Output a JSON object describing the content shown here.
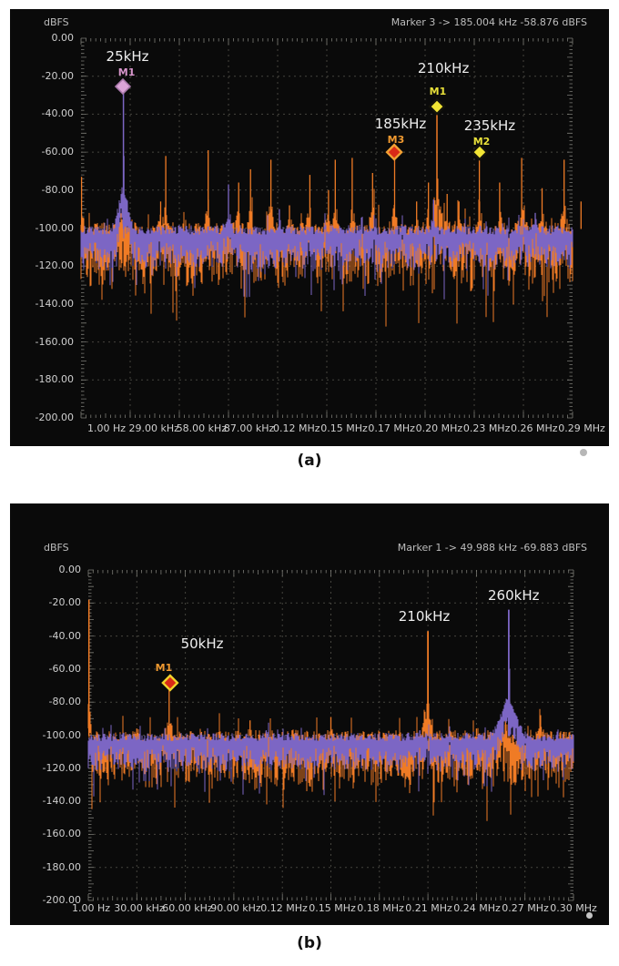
{
  "colors": {
    "page_bg": "#ffffff",
    "panel_bg": "#0a0a0a",
    "grid": "#45443e",
    "tick": "#8f8f88",
    "axis_text": "#cfcfcf",
    "header_text": "#bdbdbd",
    "annotation_text": "#eeeeee",
    "caption_text": "#111111",
    "orange_trace": "#ef7b25",
    "purple_trace": "#7c66c4",
    "yellow_marker": "#f2e535",
    "red_marker": "#da2a17",
    "pink_marker": "#dca4d8"
  },
  "chart_data": [
    {
      "type": "line",
      "subtype": "fft-spectrum",
      "caption": "(a)",
      "ylabel": "dBFS",
      "marker_readout": "Marker 3 -> 185.004 kHz -58.876 dBFS",
      "y_axis": {
        "max_db": 0,
        "min_db": -200,
        "ticks": [
          "0.00",
          "-20.00",
          "-40.00",
          "-60.00",
          "-80.00",
          "-100.00",
          "-120.00",
          "-140.00",
          "-160.00",
          "-180.00",
          "-200.00"
        ]
      },
      "x_axis": {
        "span_khz": 290,
        "ticks": [
          "1.00 Hz",
          "29.00 kHz",
          "58.00 kHz",
          "87.00 kHz",
          "0.12 MHz",
          "0.15 MHz",
          "0.17 MHz",
          "0.20 MHz",
          "0.23 MHz",
          "0.26 MHz",
          "0.29 MHz"
        ]
      },
      "noise_floor_db": {
        "top": -100,
        "bottom": -130
      },
      "series": [
        {
          "name": "trace-orange",
          "color": "#ef7b25",
          "peaks": [
            {
              "f_khz": 0.3,
              "db": -73
            },
            {
              "f_khz": 25,
              "db": -80,
              "skirt": 6
            },
            {
              "f_khz": 47,
              "db": -86
            },
            {
              "f_khz": 50,
              "db": -62
            },
            {
              "f_khz": 75,
              "db": -59
            },
            {
              "f_khz": 93,
              "db": -76
            },
            {
              "f_khz": 100,
              "db": -69
            },
            {
              "f_khz": 112,
              "db": -64
            },
            {
              "f_khz": 123,
              "db": -88
            },
            {
              "f_khz": 135,
              "db": -72
            },
            {
              "f_khz": 146,
              "db": -80
            },
            {
              "f_khz": 150,
              "db": -64
            },
            {
              "f_khz": 160,
              "db": -63
            },
            {
              "f_khz": 172,
              "db": -71
            },
            {
              "f_khz": 185,
              "db": -59.5
            },
            {
              "f_khz": 198,
              "db": -86
            },
            {
              "f_khz": 205,
              "db": -76
            },
            {
              "f_khz": 210,
              "db": -37,
              "skirt": 4,
              "w": 1.5
            },
            {
              "f_khz": 216,
              "db": -82
            },
            {
              "f_khz": 223,
              "db": -86
            },
            {
              "f_khz": 235,
              "db": -58.5
            },
            {
              "f_khz": 247,
              "db": -76
            },
            {
              "f_khz": 260,
              "db": -63
            },
            {
              "f_khz": 272,
              "db": -79
            },
            {
              "f_khz": 285,
              "db": -64
            },
            {
              "f_khz": 295,
              "db": -86
            }
          ]
        },
        {
          "name": "trace-purple",
          "color": "#7c66c4",
          "peaks": [
            {
              "f_khz": 25,
              "db": -28,
              "skirt": 5,
              "w": 1.5
            },
            {
              "f_khz": 25.3,
              "db": -62,
              "skirt": 1.3
            },
            {
              "f_khz": 87,
              "db": -77
            },
            {
              "f_khz": 117,
              "db": -90
            },
            {
              "f_khz": 208,
              "db": -85
            },
            {
              "f_khz": 268,
              "db": -92
            }
          ]
        }
      ],
      "markers": [
        {
          "id": "M1",
          "freq_text": "25kHz",
          "f_khz": 24.7,
          "db": -25.4,
          "fill": "#dca4d8",
          "stroke": "#a878aa",
          "sw": 1.6,
          "label_color": "#d795cb",
          "label_f": 26.9,
          "label_db": -17.7,
          "text_f": 27.4,
          "text_db": -9.6
        },
        {
          "id": "M1",
          "freq_text": "210kHz",
          "f_khz": 210,
          "db": -36,
          "fill": "#f2e535",
          "stroke": "#14130a",
          "sw": 2.4,
          "label_color": "#e8e03a",
          "label_f": 210.5,
          "label_db": -27.8,
          "text_f": 213.8,
          "text_db": -15.8
        },
        {
          "id": "M3",
          "freq_text": "185kHz",
          "f_khz": 184.8,
          "db": -60,
          "fill": "#da2a17",
          "stroke": "#f2a033",
          "sw": 2.4,
          "label_color": "#f09930",
          "label_f": 185.8,
          "label_db": -53.2,
          "text_f": 188.5,
          "text_db": -45.1
        },
        {
          "id": "M2",
          "freq_text": "235kHz",
          "f_khz": 235.2,
          "db": -60,
          "fill": "#f2e535",
          "stroke": "#14130a",
          "sw": 2.4,
          "label_color": "#e8e03a",
          "label_f": 236.3,
          "label_db": -54.2,
          "text_f": 241.1,
          "text_db": -46
        }
      ],
      "annotations": []
    },
    {
      "type": "line",
      "subtype": "fft-spectrum",
      "caption": "(b)",
      "ylabel": "dBFS",
      "marker_readout": "Marker 1 -> 49.988 kHz -69.883 dBFS",
      "y_axis": {
        "max_db": 0,
        "min_db": -200,
        "ticks": [
          "0.00",
          "-20.00",
          "-40.00",
          "-60.00",
          "-80.00",
          "-100.00",
          "-120.00",
          "-140.00",
          "-160.00",
          "-180.00",
          "-200.00"
        ]
      },
      "x_axis": {
        "span_khz": 300,
        "ticks": [
          "1.00 Hz",
          "30.00 kHz",
          "60.00 kHz",
          "90.00 kHz",
          "0.12 MHz",
          "0.15 MHz",
          "0.18 MHz",
          "0.21 MHz",
          "0.24 MHz",
          "0.27 MHz",
          "0.30 MHz"
        ]
      },
      "noise_floor_db": {
        "top": -100,
        "bottom": -130
      },
      "series": [
        {
          "name": "trace-orange",
          "color": "#ef7b25",
          "peaks": [
            {
              "f_khz": 0.4,
              "db": -18,
              "skirt": 1.5,
              "w": 1.5
            },
            {
              "f_khz": 30,
              "db": -96
            },
            {
              "f_khz": 50,
              "db": -70
            },
            {
              "f_khz": 70,
              "db": -98
            },
            {
              "f_khz": 100,
              "db": -91
            },
            {
              "f_khz": 126,
              "db": -97
            },
            {
              "f_khz": 150,
              "db": -89
            },
            {
              "f_khz": 175,
              "db": -99
            },
            {
              "f_khz": 210,
              "db": -37,
              "skirt": 3.5,
              "w": 1.8
            },
            {
              "f_khz": 240,
              "db": -96
            },
            {
              "f_khz": 258,
              "db": -88,
              "skirt": 4
            },
            {
              "f_khz": 280,
              "db": -95
            }
          ]
        },
        {
          "name": "trace-purple",
          "color": "#7c66c4",
          "peaks": [
            {
              "f_khz": 110,
              "db": -97
            },
            {
              "f_khz": 205,
              "db": -97
            },
            {
              "f_khz": 260,
              "db": -24,
              "skirt": 8,
              "w": 1.8
            },
            {
              "f_khz": 260.5,
              "db": -60,
              "skirt": 1.5
            }
          ]
        }
      ],
      "markers": [
        {
          "id": "M1",
          "freq_text": "50kHz",
          "f_khz": 50.6,
          "db": -68.3,
          "fill": "#da2a17",
          "stroke": "#f2d22a",
          "sw": 2.4,
          "label_color": "#f09930",
          "label_f": 46.7,
          "label_db": -59,
          "text_f": 70.4,
          "text_db": -44.6
        }
      ],
      "annotations": [
        {
          "text": "210kHz",
          "f_khz": 207.7,
          "db": -28
        },
        {
          "text": "260kHz",
          "f_khz": 263,
          "db": -15.4
        }
      ]
    }
  ]
}
